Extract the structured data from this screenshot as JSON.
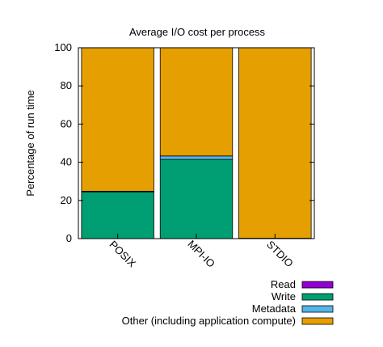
{
  "chart_data": {
    "type": "bar",
    "stacked": true,
    "title": "Average I/O cost per process",
    "ylabel": "Percentage of run time",
    "xlabel": "",
    "ylim": [
      0,
      100
    ],
    "yticks": [
      0,
      20,
      40,
      60,
      80,
      100
    ],
    "categories": [
      "POSIX",
      "MPI-IO",
      "STDIO"
    ],
    "grid": false,
    "legend_position": "bottom-right",
    "series": [
      {
        "name": "Read",
        "color": "#9400d3",
        "values": [
          0,
          0,
          0
        ]
      },
      {
        "name": "Write",
        "color": "#009e73",
        "values": [
          24.5,
          41.5,
          0
        ]
      },
      {
        "name": "Metadata",
        "color": "#56b4e9",
        "values": [
          0.3,
          1.8,
          0.2
        ]
      },
      {
        "name": "Other (including application compute)",
        "color": "#e69f00",
        "values": [
          75.2,
          56.7,
          99.8
        ]
      }
    ]
  }
}
